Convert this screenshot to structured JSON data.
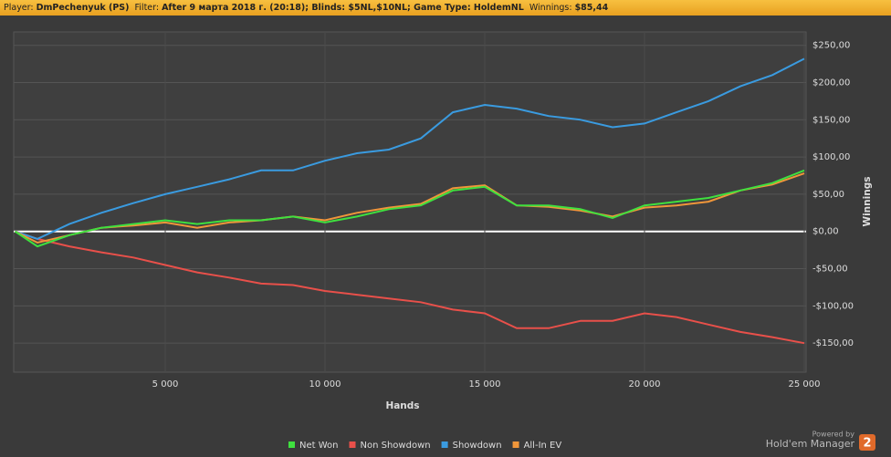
{
  "header": {
    "player_label": "Player:",
    "player": "DmPechenyuk (PS)",
    "filter_label": "Filter:",
    "filter": "After 9 марта 2018 г. (20:18); Blinds: $5NL,$10NL; Game Type: HoldemNL",
    "winnings_label": "Winnings:",
    "winnings": "$85,44"
  },
  "footer": {
    "powered_by": "Powered by",
    "brand": "Hold'em Manager",
    "badge": "2"
  },
  "chart_data": {
    "type": "line",
    "xlabel": "Hands",
    "ylabel": "Winnings",
    "x": [
      300,
      1000,
      2000,
      3000,
      4000,
      5000,
      6000,
      7000,
      8000,
      9000,
      10000,
      11000,
      12000,
      13000,
      14000,
      15000,
      16000,
      17000,
      18000,
      19000,
      20000,
      21000,
      22000,
      23000,
      24000,
      25000
    ],
    "series": [
      {
        "name": "Net Won",
        "color": "#3fe03f",
        "values": [
          0,
          -20,
          -5,
          5,
          10,
          15,
          10,
          15,
          15,
          20,
          12,
          20,
          30,
          35,
          55,
          60,
          35,
          35,
          30,
          18,
          35,
          40,
          45,
          55,
          65,
          82
        ]
      },
      {
        "name": "Non Showdown",
        "color": "#e8504a",
        "values": [
          0,
          -10,
          -20,
          -28,
          -35,
          -45,
          -55,
          -62,
          -70,
          -72,
          -80,
          -85,
          -90,
          -95,
          -105,
          -110,
          -130,
          -130,
          -120,
          -120,
          -110,
          -115,
          -125,
          -135,
          -142,
          -150
        ]
      },
      {
        "name": "Showdown",
        "color": "#3a9be0",
        "values": [
          0,
          -10,
          10,
          25,
          38,
          50,
          60,
          70,
          82,
          82,
          95,
          105,
          110,
          125,
          160,
          170,
          165,
          155,
          150,
          140,
          145,
          160,
          175,
          195,
          210,
          232
        ]
      },
      {
        "name": "All-In EV",
        "color": "#f0963a",
        "values": [
          0,
          -15,
          -5,
          5,
          8,
          12,
          5,
          12,
          15,
          20,
          15,
          25,
          32,
          37,
          58,
          62,
          35,
          33,
          28,
          20,
          32,
          35,
          40,
          55,
          63,
          78
        ]
      }
    ],
    "xlim": [
      257,
      25057
    ],
    "ylim": [
      -189,
      268
    ],
    "xticks": [
      {
        "value": 5000,
        "label": "5 000"
      },
      {
        "value": 10000,
        "label": "10 000"
      },
      {
        "value": 15000,
        "label": "15 000"
      },
      {
        "value": 20000,
        "label": "20 000"
      },
      {
        "value": 25000,
        "label": "25 000"
      }
    ],
    "yticks": [
      {
        "value": -150,
        "label": "-$150,00"
      },
      {
        "value": -100,
        "label": "-$100,00"
      },
      {
        "value": -50,
        "label": "-$50,00"
      },
      {
        "value": 0,
        "label": "$0,00"
      },
      {
        "value": 50,
        "label": "$50,00"
      },
      {
        "value": 100,
        "label": "$100,00"
      },
      {
        "value": 150,
        "label": "$150,00"
      },
      {
        "value": 200,
        "label": "$200,00"
      },
      {
        "value": 250,
        "label": "$250,00"
      }
    ],
    "grid": true,
    "legend": "bottom"
  }
}
